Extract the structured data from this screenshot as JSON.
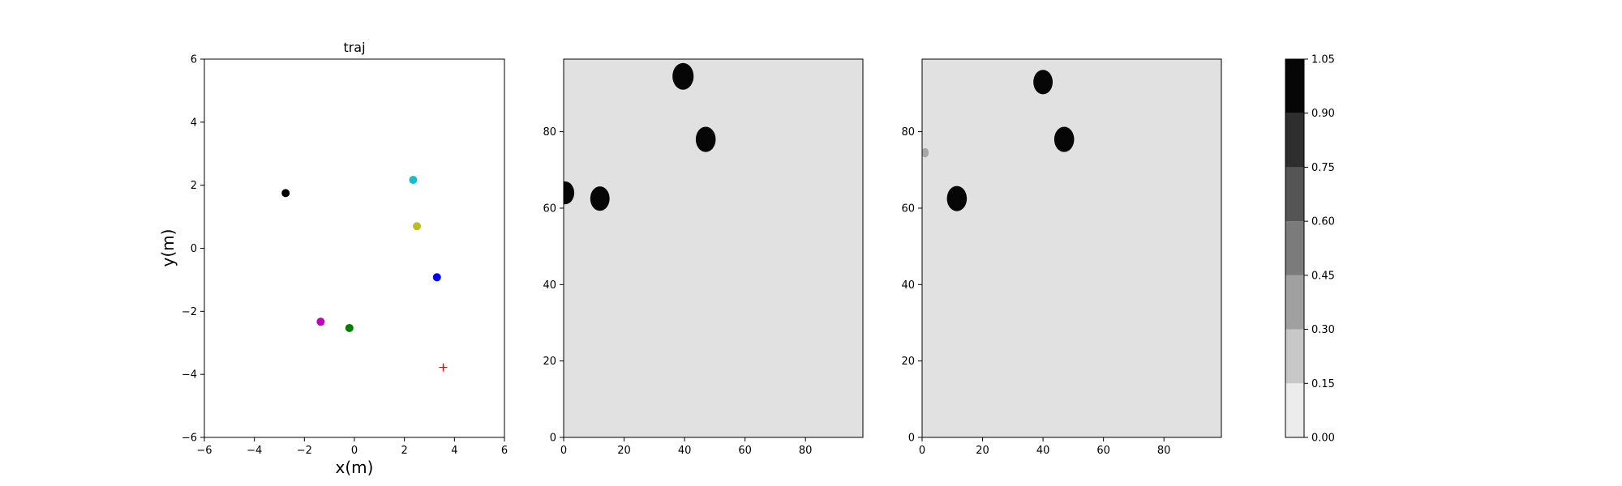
{
  "chart_data": [
    {
      "type": "scatter",
      "title": "traj",
      "xlabel": "x(m)",
      "ylabel": "y(m)",
      "xlim": [
        -6,
        6
      ],
      "ylim": [
        -6,
        6
      ],
      "xticks": [
        -6,
        -4,
        -2,
        0,
        2,
        4,
        6
      ],
      "yticks": [
        -6,
        -4,
        -2,
        0,
        2,
        4,
        6
      ],
      "grid": false,
      "points": [
        {
          "x": -2.75,
          "y": 1.75,
          "color": "#000000",
          "marker": "circle"
        },
        {
          "x": 2.35,
          "y": 2.17,
          "color": "#17becf",
          "marker": "circle"
        },
        {
          "x": 2.5,
          "y": 0.7,
          "color": "#bcbd22",
          "marker": "circle"
        },
        {
          "x": 3.3,
          "y": -0.92,
          "color": "#0000ff",
          "marker": "circle"
        },
        {
          "x": -1.35,
          "y": -2.33,
          "color": "#bf00bf",
          "marker": "circle"
        },
        {
          "x": -0.2,
          "y": -2.53,
          "color": "#008000",
          "marker": "circle"
        },
        {
          "x": 3.55,
          "y": -3.78,
          "color": "#ff0000",
          "marker": "plus"
        }
      ]
    },
    {
      "type": "heatmap",
      "xlim": [
        0,
        99
      ],
      "ylim": [
        0,
        99
      ],
      "xticks": [
        0,
        20,
        40,
        60,
        80
      ],
      "yticks": [
        0,
        20,
        40,
        60,
        80
      ],
      "background_level": 0.05,
      "blobs": [
        {
          "x": 0.5,
          "y": 64,
          "r": 3,
          "level": 1.0
        },
        {
          "x": 12,
          "y": 62.5,
          "r": 3.2,
          "level": 1.0
        },
        {
          "x": 39.5,
          "y": 94.5,
          "r": 3.5,
          "level": 1.0
        },
        {
          "x": 47,
          "y": 78,
          "r": 3.3,
          "level": 1.0
        }
      ]
    },
    {
      "type": "heatmap",
      "xlim": [
        0,
        99
      ],
      "ylim": [
        0,
        99
      ],
      "xticks": [
        0,
        20,
        40,
        60,
        80
      ],
      "yticks": [
        0,
        20,
        40,
        60,
        80
      ],
      "background_level": 0.05,
      "blobs": [
        {
          "x": 1,
          "y": 74.5,
          "r": 1.2,
          "level": 0.3
        },
        {
          "x": 11.5,
          "y": 62.5,
          "r": 3.3,
          "level": 1.0
        },
        {
          "x": 40,
          "y": 93,
          "r": 3.2,
          "level": 1.0
        },
        {
          "x": 47,
          "y": 78,
          "r": 3.3,
          "level": 1.0
        }
      ]
    },
    {
      "type": "colorbar",
      "levels": [
        0.0,
        0.15,
        0.3,
        0.45,
        0.6,
        0.75,
        0.9,
        1.05
      ],
      "tick_labels": [
        "0.00",
        "0.15",
        "0.30",
        "0.45",
        "0.60",
        "0.75",
        "0.90",
        "1.05"
      ],
      "band_colors": [
        "#ececec",
        "#c8c8c8",
        "#a0a0a0",
        "#7b7b7b",
        "#555555",
        "#2e2e2e",
        "#060606"
      ]
    }
  ]
}
